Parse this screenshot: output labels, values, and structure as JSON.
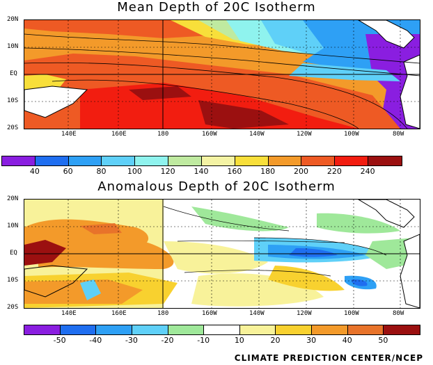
{
  "titles": {
    "top": "Mean Depth of 20C Isotherm",
    "bottom": "Anomalous Depth of 20C Isotherm"
  },
  "lat_labels": [
    "20N",
    "10N",
    "EQ",
    "10S",
    "20S"
  ],
  "lon_labels": [
    "140E",
    "160E",
    "180",
    "160W",
    "140W",
    "120W",
    "100W",
    "80W"
  ],
  "colorbar_top": {
    "ticks": [
      "40",
      "60",
      "80",
      "100",
      "120",
      "140",
      "160",
      "180",
      "200",
      "220",
      "240"
    ],
    "colors": [
      "#8a1ee0",
      "#1f6ef0",
      "#2ea0f5",
      "#5fd0f8",
      "#8ff3ee",
      "#bfeaa0",
      "#f4f3a4",
      "#f8df3a",
      "#f39a2a",
      "#ee5a24",
      "#f21d10",
      "#9b1010"
    ]
  },
  "colorbar_bottom": {
    "ticks": [
      "-50",
      "-40",
      "-30",
      "-20",
      "-10",
      "10",
      "20",
      "30",
      "40",
      "50"
    ],
    "colors": [
      "#8a1ee0",
      "#1f6ef0",
      "#2ea0f5",
      "#5fd0f8",
      "#9fe89a",
      "#ffffff",
      "#f8f29a",
      "#f8d12f",
      "#f39a2a",
      "#e8732a",
      "#9b1010"
    ]
  },
  "credit": "CLIMATE PREDICTION CENTER/NCEP"
}
